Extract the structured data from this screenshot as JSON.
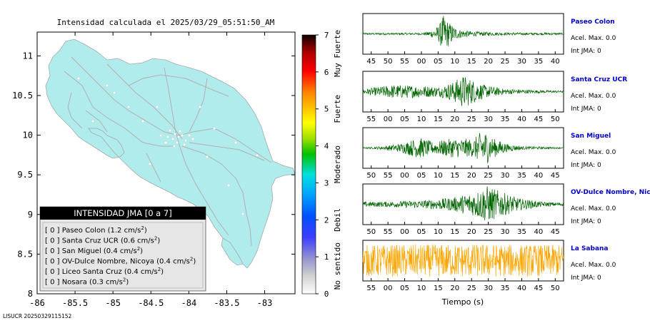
{
  "map": {
    "title": "Intensidad calculada el 2025/03/29_05:51:50_AM",
    "x_ticks": [
      "-86",
      "-85.5",
      "-85",
      "-84.5",
      "-84",
      "-83.5",
      "-83"
    ],
    "x_values": [
      -86,
      -85.5,
      -85,
      -84.5,
      -84,
      -83.5,
      -83
    ],
    "y_ticks": [
      "11",
      "10.5",
      "10",
      "9.5",
      "9",
      "8.5",
      "8"
    ],
    "y_values": [
      11,
      10.5,
      10,
      9.5,
      9,
      8.5,
      8
    ],
    "xlim": [
      -86,
      -82.6
    ],
    "ylim": [
      8,
      11.3
    ],
    "land_color": "#b0ecec",
    "road_color": "#b0b0b0",
    "legend": {
      "header": "INTENSIDAD JMA [0 a 7]",
      "rows": [
        {
          "text": "[ 0 ]  Paseo Colon (1.2 cm/s",
          "sup": "2",
          "close": ")"
        },
        {
          "text": "[ 0 ]  Santa Cruz UCR (0.6 cm/s",
          "sup": "2",
          "close": ")"
        },
        {
          "text": "[ 0 ]  San Miguel (0.4 cm/s",
          "sup": "2",
          "close": ")"
        },
        {
          "text": "[ 0 ]  OV-Dulce Nombre, Nicoya (0.4 cm/s",
          "sup": "2",
          "close": ")"
        },
        {
          "text": "[ 0 ]  Liceo Santa Cruz (0.4 cm/s",
          "sup": "2",
          "close": ")"
        },
        {
          "text": "[ 0 ]  Nosara (0.3 cm/s",
          "sup": "2",
          "close": ")"
        }
      ]
    }
  },
  "colorbar": {
    "ticks": [
      "7",
      "6",
      "5",
      "4",
      "3",
      "2",
      "1",
      "0"
    ],
    "tick_values": [
      7,
      6,
      5,
      4,
      3,
      2,
      1,
      0
    ],
    "range": [
      0,
      7
    ],
    "categories": [
      "Muy Fuerte",
      "Fuerte",
      "Moderado",
      "Debil",
      "No sentido"
    ]
  },
  "chart_data": {
    "type": "line",
    "xlabel": "Tiempo (s)",
    "panels": [
      {
        "station": "Paseo Colon",
        "accel": "Acel. Max. 0.0",
        "jma": "Int JMA: 0",
        "color": "#006400",
        "ticks": [
          "45",
          "50",
          "55",
          "00",
          "05",
          "10",
          "15",
          "20",
          "25",
          "30",
          "35",
          "40"
        ],
        "tick_values": [
          45,
          50,
          55,
          0,
          5,
          10,
          15,
          20,
          25,
          30,
          35,
          40
        ],
        "envelope": [
          [
            0,
            0.05
          ],
          [
            0.3,
            0.05
          ],
          [
            0.35,
            0.2
          ],
          [
            0.38,
            0.45
          ],
          [
            0.4,
            0.95
          ],
          [
            0.43,
            0.6
          ],
          [
            0.47,
            0.25
          ],
          [
            0.55,
            0.12
          ],
          [
            0.7,
            0.07
          ],
          [
            1,
            0.05
          ]
        ]
      },
      {
        "station": "Santa Cruz UCR",
        "accel": "Acel. Max. 0.0",
        "jma": "Int JMA: 0",
        "color": "#006400",
        "ticks": [
          "55",
          "00",
          "05",
          "10",
          "15",
          "20",
          "25",
          "30",
          "35",
          "40",
          "45",
          "50"
        ],
        "tick_values": [
          55,
          0,
          5,
          10,
          15,
          20,
          25,
          30,
          35,
          40,
          45,
          50
        ],
        "envelope": [
          [
            0,
            0.12
          ],
          [
            0.05,
            0.2
          ],
          [
            0.15,
            0.35
          ],
          [
            0.3,
            0.3
          ],
          [
            0.38,
            0.25
          ],
          [
            0.45,
            0.5
          ],
          [
            0.5,
            0.85
          ],
          [
            0.55,
            0.6
          ],
          [
            0.6,
            0.35
          ],
          [
            0.7,
            0.15
          ],
          [
            0.85,
            0.08
          ],
          [
            1,
            0.05
          ]
        ]
      },
      {
        "station": "San Miguel",
        "accel": "Acel. Max. 0.0",
        "jma": "Int JMA: 0",
        "color": "#006400",
        "ticks": [
          "50",
          "55",
          "00",
          "05",
          "10",
          "15",
          "20",
          "25",
          "30",
          "35",
          "40",
          "45"
        ],
        "tick_values": [
          50,
          55,
          0,
          5,
          10,
          15,
          20,
          25,
          30,
          35,
          40,
          45
        ],
        "envelope": [
          [
            0,
            0.03
          ],
          [
            0.1,
            0.08
          ],
          [
            0.2,
            0.25
          ],
          [
            0.28,
            0.55
          ],
          [
            0.35,
            0.3
          ],
          [
            0.45,
            0.5
          ],
          [
            0.55,
            0.45
          ],
          [
            0.6,
            0.95
          ],
          [
            0.65,
            0.5
          ],
          [
            0.72,
            0.2
          ],
          [
            0.8,
            0.08
          ],
          [
            1,
            0.03
          ]
        ]
      },
      {
        "station": "OV-Dulce Nombre, Nicoya",
        "accel": "Acel. Max. 0.0",
        "jma": "Int JMA: 0",
        "color": "#006400",
        "ticks": [
          "50",
          "55",
          "00",
          "05",
          "10",
          "15",
          "20",
          "25",
          "30",
          "35",
          "40",
          "45"
        ],
        "tick_values": [
          50,
          55,
          0,
          5,
          10,
          15,
          20,
          25,
          30,
          35,
          40,
          45
        ],
        "envelope": [
          [
            0,
            0.12
          ],
          [
            0.15,
            0.15
          ],
          [
            0.3,
            0.2
          ],
          [
            0.45,
            0.35
          ],
          [
            0.55,
            0.6
          ],
          [
            0.62,
            0.95
          ],
          [
            0.7,
            0.6
          ],
          [
            0.78,
            0.3
          ],
          [
            0.9,
            0.12
          ],
          [
            1,
            0.08
          ]
        ]
      },
      {
        "station": "La Sabana",
        "accel": "Acel. Max. 0.0",
        "jma": "Int JMA: 0",
        "color": "#ffa500",
        "ticks": [
          "55",
          "00",
          "05",
          "10",
          "15",
          "20",
          "25",
          "30",
          "35",
          "40",
          "45",
          "50"
        ],
        "tick_values": [
          55,
          0,
          5,
          10,
          15,
          20,
          25,
          30,
          35,
          40,
          45,
          50
        ],
        "envelope": [
          [
            0,
            0.8
          ],
          [
            0.5,
            0.85
          ],
          [
            1,
            0.8
          ]
        ]
      }
    ]
  },
  "footer": "LISUCR 20250329115152"
}
